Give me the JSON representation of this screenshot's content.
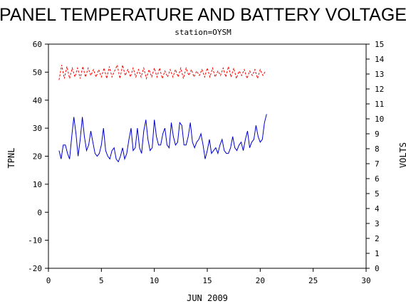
{
  "chart_data": {
    "type": "line",
    "title": "PANEL TEMPERATURE AND BATTERY VOLTAGE",
    "subtitle": "station=OYSM",
    "xlabel": "JUN 2009",
    "ylabel_left": "TPNL",
    "ylabel_right": "VOLTS",
    "xlim": [
      0,
      30
    ],
    "ylim_left": [
      -20,
      60
    ],
    "ylim_right": [
      0,
      15
    ],
    "x_ticks": [
      0,
      5,
      10,
      15,
      20,
      25,
      30
    ],
    "y_ticks_left": [
      -20,
      -10,
      0,
      10,
      20,
      30,
      40,
      50,
      60
    ],
    "y_ticks_right": [
      0,
      1,
      2,
      3,
      4,
      5,
      6,
      7,
      8,
      9,
      10,
      11,
      12,
      13,
      14,
      15
    ],
    "grid": false,
    "colors": {
      "temperature": "#0000cc",
      "voltage": "#ff0000"
    },
    "series": [
      {
        "axis": "left",
        "color": "#0000cc",
        "style": "solid",
        "x": [
          1.0,
          1.2,
          1.4,
          1.6,
          1.8,
          2.0,
          2.2,
          2.4,
          2.6,
          2.8,
          3.0,
          3.2,
          3.4,
          3.6,
          3.8,
          4.0,
          4.2,
          4.4,
          4.6,
          4.8,
          5.0,
          5.2,
          5.4,
          5.6,
          5.8,
          6.0,
          6.2,
          6.4,
          6.6,
          6.8,
          7.0,
          7.2,
          7.4,
          7.6,
          7.8,
          8.0,
          8.2,
          8.4,
          8.6,
          8.8,
          9.0,
          9.2,
          9.4,
          9.6,
          9.8,
          10.0,
          10.2,
          10.4,
          10.6,
          10.8,
          11.0,
          11.2,
          11.4,
          11.6,
          11.8,
          12.0,
          12.2,
          12.4,
          12.6,
          12.8,
          13.0,
          13.2,
          13.4,
          13.6,
          13.8,
          14.0,
          14.2,
          14.4,
          14.6,
          14.8,
          15.0,
          15.2,
          15.4,
          15.6,
          15.8,
          16.0,
          16.2,
          16.4,
          16.6,
          16.8,
          17.0,
          17.2,
          17.4,
          17.6,
          17.8,
          18.0,
          18.2,
          18.4,
          18.6,
          18.8,
          19.0,
          19.2,
          19.4,
          19.6,
          19.8,
          20.0,
          20.2,
          20.4,
          20.6
        ],
        "values": [
          22,
          19,
          24,
          24,
          21,
          19,
          27,
          34,
          28,
          20,
          26,
          34,
          27,
          22,
          24,
          29,
          25,
          21,
          20,
          21,
          24,
          30,
          22,
          20,
          19,
          22,
          23,
          19,
          18,
          20,
          23,
          19,
          21,
          26,
          30,
          22,
          23,
          30,
          23,
          21,
          29,
          33,
          26,
          22,
          23,
          33,
          27,
          24,
          24,
          28,
          30,
          24,
          23,
          32,
          27,
          24,
          25,
          32,
          31,
          24,
          24,
          27,
          32,
          25,
          23,
          25,
          26,
          28,
          24,
          19,
          22,
          26,
          21,
          22,
          23,
          21,
          24,
          26,
          22,
          21,
          21,
          23,
          27,
          23,
          22,
          24,
          25,
          22,
          26,
          29,
          23,
          25,
          26,
          31,
          27,
          25,
          26,
          32,
          35
        ]
      },
      {
        "axis": "right",
        "color": "#ff0000",
        "style": "dashed",
        "x": [
          1.0,
          1.25,
          1.5,
          1.75,
          2.0,
          2.25,
          2.5,
          2.75,
          3.0,
          3.25,
          3.5,
          3.75,
          4.0,
          4.25,
          4.5,
          4.75,
          5.0,
          5.25,
          5.5,
          5.75,
          6.0,
          6.25,
          6.5,
          6.75,
          7.0,
          7.25,
          7.5,
          7.75,
          8.0,
          8.25,
          8.5,
          8.75,
          9.0,
          9.25,
          9.5,
          9.75,
          10.0,
          10.25,
          10.5,
          10.75,
          11.0,
          11.25,
          11.5,
          11.75,
          12.0,
          12.25,
          12.5,
          12.75,
          13.0,
          13.25,
          13.5,
          13.75,
          14.0,
          14.25,
          14.5,
          14.75,
          15.0,
          15.25,
          15.5,
          15.75,
          16.0,
          16.25,
          16.5,
          16.75,
          17.0,
          17.25,
          17.5,
          17.75,
          18.0,
          18.25,
          18.5,
          18.75,
          19.0,
          19.25,
          19.5,
          19.75,
          20.0,
          20.25,
          20.5
        ],
        "values": [
          12.6,
          13.6,
          12.7,
          13.5,
          12.7,
          13.4,
          12.8,
          13.4,
          12.7,
          13.5,
          12.8,
          13.4,
          12.9,
          13.3,
          12.8,
          13.3,
          12.8,
          13.4,
          12.7,
          13.5,
          12.8,
          13.2,
          13.6,
          12.7,
          13.6,
          12.9,
          13.3,
          12.8,
          13.4,
          12.8,
          13.3,
          12.8,
          13.4,
          12.7,
          13.3,
          12.8,
          13.4,
          12.8,
          13.4,
          12.7,
          13.2,
          12.8,
          13.3,
          12.8,
          13.3,
          12.8,
          13.4,
          12.7,
          13.4,
          12.9,
          13.3,
          12.8,
          13.2,
          12.9,
          13.3,
          12.8,
          13.4,
          12.8,
          13.4,
          12.8,
          13.2,
          12.9,
          13.4,
          12.8,
          13.5,
          12.8,
          13.4,
          12.7,
          13.2,
          12.9,
          13.3,
          12.7,
          13.2,
          12.9,
          13.3,
          12.7,
          13.3,
          12.9,
          13.2
        ]
      }
    ]
  }
}
